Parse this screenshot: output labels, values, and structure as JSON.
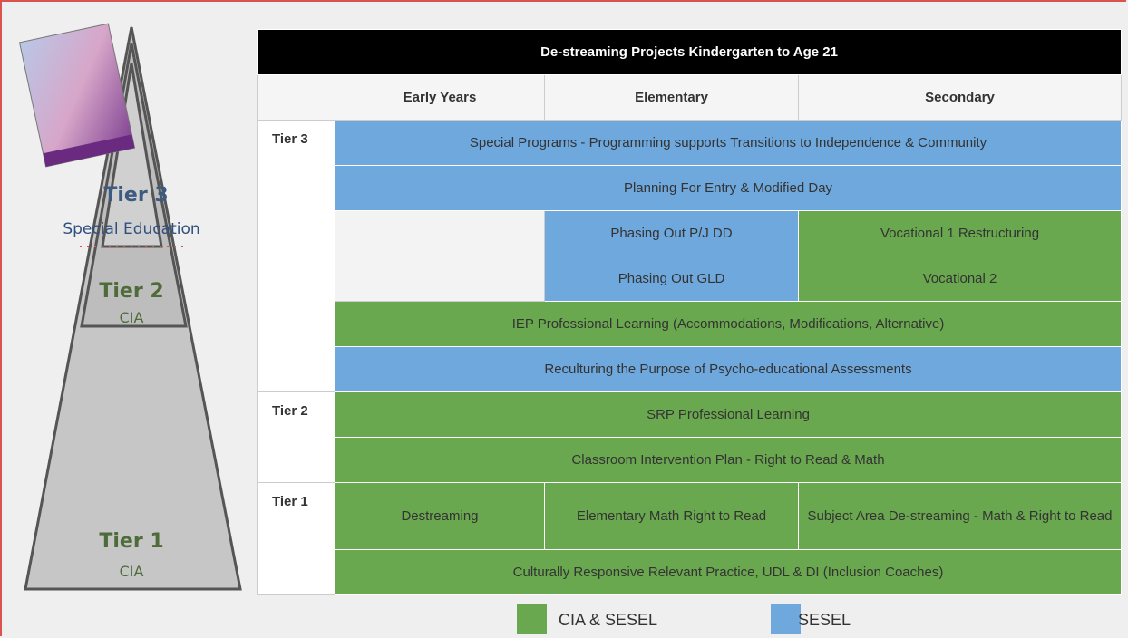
{
  "pyramid": {
    "tiers": [
      {
        "name": "Tier 3",
        "label": "Special Education"
      },
      {
        "name": "Tier 2",
        "label": "CIA"
      },
      {
        "name": "Tier 1",
        "label": "CIA"
      }
    ]
  },
  "table": {
    "title": "De-streaming Projects Kindergarten to Age 21",
    "columns": [
      "Early Years",
      "Elementary",
      "Secondary"
    ],
    "rows": [
      {
        "tier": "Tier 3",
        "cells": [
          "Special Programs - Programming supports Transitions to Independence & Community"
        ]
      },
      {
        "cells": [
          "Planning For Entry & Modified Day"
        ]
      },
      {
        "cells": [
          "Phasing Out P/J DD",
          "Vocational 1 Restructuring"
        ]
      },
      {
        "cells": [
          "Phasing Out GLD",
          "Vocational 2"
        ]
      },
      {
        "cells": [
          "IEP Professional Learning (Accommodations, Modifications, Alternative)"
        ]
      },
      {
        "cells": [
          "Reculturing the Purpose of Psycho-educational Assessments"
        ]
      },
      {
        "tier": "Tier 2",
        "cells": [
          "SRP Professional Learning"
        ]
      },
      {
        "cells": [
          "Classroom Intervention Plan - Right to Read & Math"
        ]
      },
      {
        "tier": "Tier 1",
        "cells": [
          "Destreaming",
          "Elementary Math Right to Read",
          "Subject Area De-streaming - Math & Right to Read"
        ]
      },
      {
        "cells": [
          "Culturally Responsive Relevant Practice, UDL & DI (Inclusion Coaches)"
        ]
      }
    ]
  },
  "legend": [
    "CIA & SESEL",
    "SESEL"
  ]
}
